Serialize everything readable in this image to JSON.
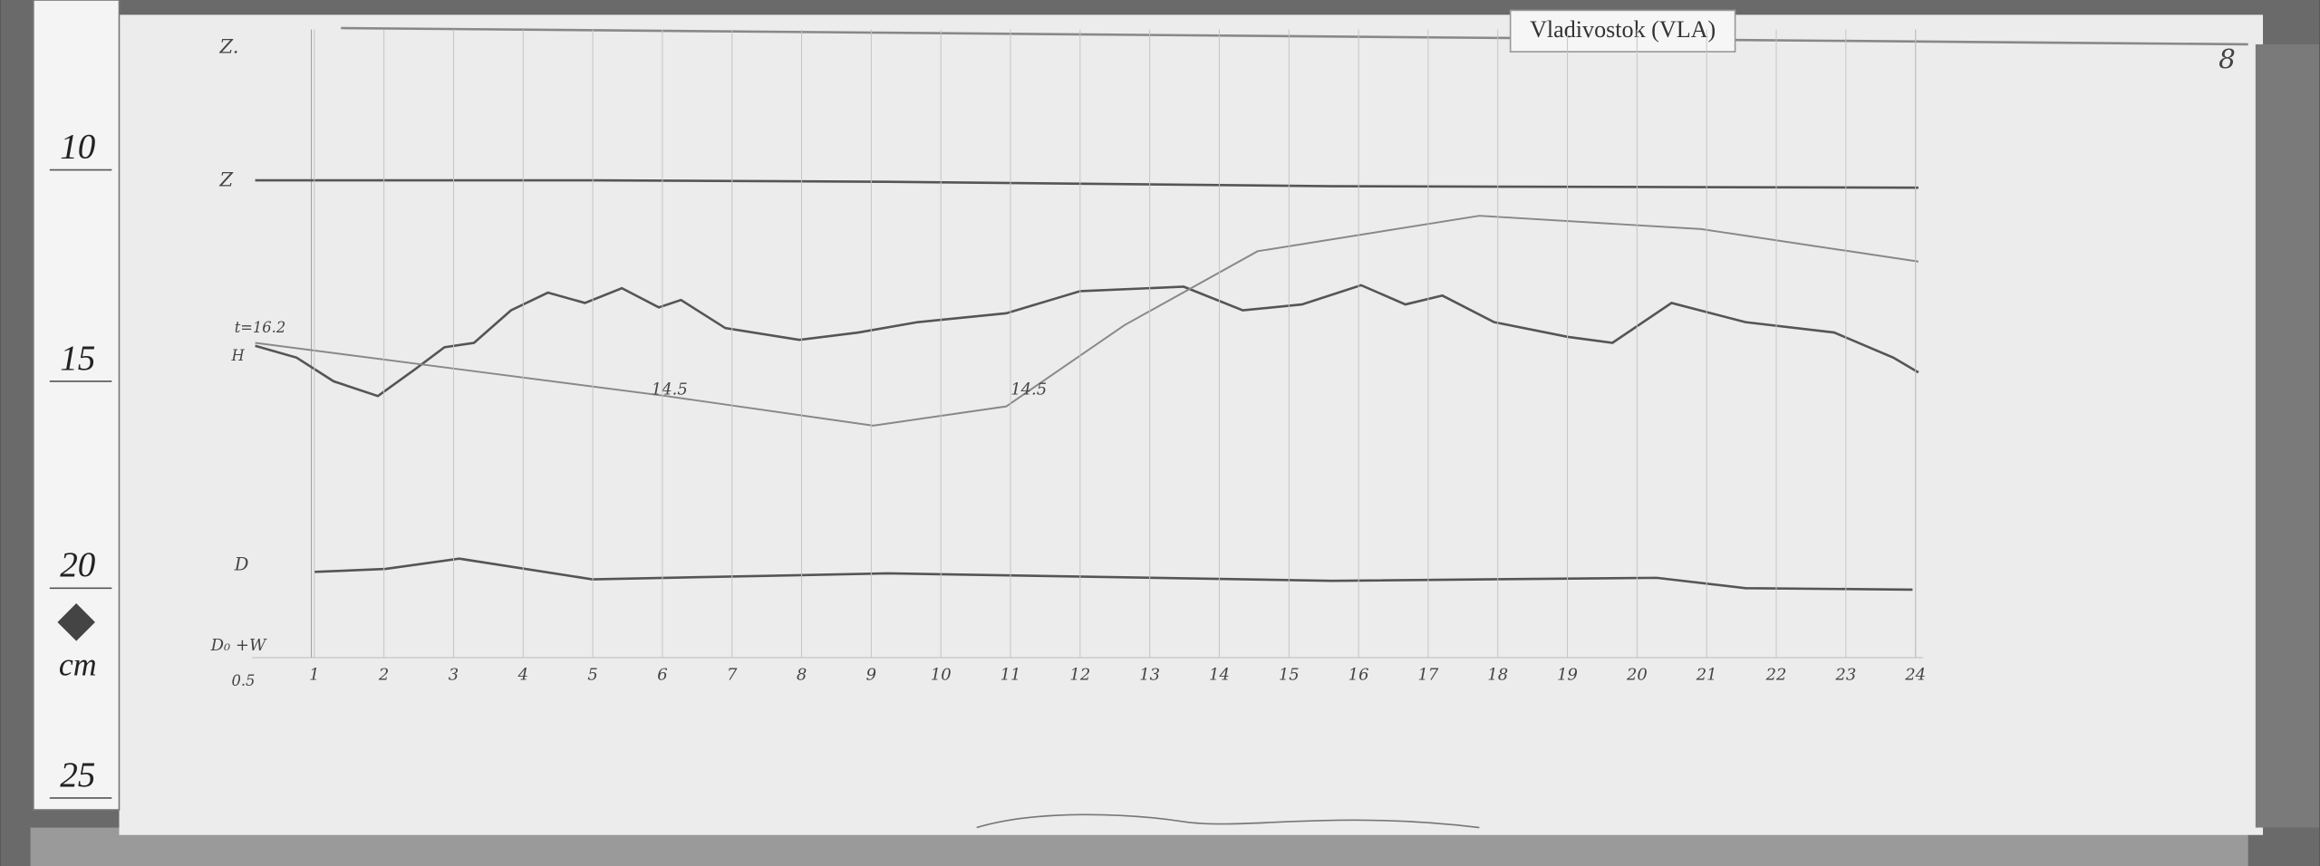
{
  "station_label": "Vladivostok (VLA)",
  "sheet_number": "8",
  "ruler": {
    "marks": [
      "10",
      "15",
      "20",
      "25"
    ],
    "unit": "cm"
  },
  "trace_labels": {
    "z_top": "Z.",
    "z": "Z",
    "h": "H",
    "d": "D",
    "temperature": "t=16.2"
  },
  "temperature_notes": [
    "14.5",
    "14.5"
  ],
  "baseline_label": "D₀ +W",
  "baseline_offset": "0.5",
  "hours": [
    "1",
    "2",
    "3",
    "4",
    "5",
    "6",
    "7",
    "8",
    "9",
    "10",
    "11",
    "12",
    "13",
    "14",
    "15",
    "16",
    "17",
    "18",
    "19",
    "20",
    "21",
    "22",
    "23",
    "24"
  ]
}
